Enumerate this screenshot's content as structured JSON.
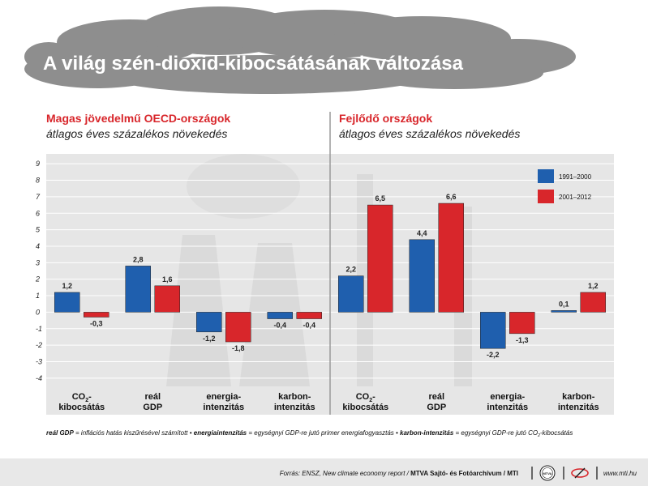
{
  "header": {
    "title": "A világ szén-dioxid-kibocsátásának változása"
  },
  "panels": [
    {
      "title": "Magas jövedelmű OECD-országok",
      "subtitle": "átlagos éves százalékos növekedés"
    },
    {
      "title": "Fejlődő országok",
      "subtitle": "átlagos éves százalékos növekedés"
    }
  ],
  "colors": {
    "series_1": "#1f5fae",
    "series_2": "#d8262b",
    "cloud": "#8e8e8e",
    "chart_bg": "#e6e6e6"
  },
  "chart_data": {
    "type": "bar",
    "ylim": [
      -4,
      9
    ],
    "yticks": [
      "9",
      "8",
      "7",
      "6",
      "5",
      "4",
      "3",
      "2",
      "1",
      "0",
      "-1",
      "-2",
      "-3",
      "-4"
    ],
    "grid": true,
    "legend_position": "top-right",
    "series_names": [
      "1991–2000",
      "2001–2012"
    ],
    "groups": [
      {
        "label_line1": "CO",
        "label_sub": "2",
        "label_dash": "-",
        "label_line2": "kibocsátás",
        "values": [
          1.2,
          -0.3
        ],
        "labels": [
          "1,2",
          "-0,3"
        ]
      },
      {
        "label_line1": "reál",
        "label_sub": "",
        "label_dash": "",
        "label_line2": "GDP",
        "values": [
          2.8,
          1.6
        ],
        "labels": [
          "2,8",
          "1,6"
        ]
      },
      {
        "label_line1": "energia-",
        "label_sub": "",
        "label_dash": "",
        "label_line2": "intenzitás",
        "values": [
          -1.2,
          -1.8
        ],
        "labels": [
          "-1,2",
          "-1,8"
        ]
      },
      {
        "label_line1": "karbon-",
        "label_sub": "",
        "label_dash": "",
        "label_line2": "intenzitás",
        "values": [
          -0.4,
          -0.4
        ],
        "labels": [
          "-0,4",
          "-0,4"
        ]
      },
      {
        "label_line1": "CO",
        "label_sub": "2",
        "label_dash": "-",
        "label_line2": "kibocsátás",
        "values": [
          2.2,
          6.5
        ],
        "labels": [
          "2,2",
          "6,5"
        ]
      },
      {
        "label_line1": "reál",
        "label_sub": "",
        "label_dash": "",
        "label_line2": "GDP",
        "values": [
          4.4,
          6.6
        ],
        "labels": [
          "4,4",
          "6,6"
        ]
      },
      {
        "label_line1": "energia-",
        "label_sub": "",
        "label_dash": "",
        "label_line2": "intenzitás",
        "values": [
          -2.2,
          -1.3
        ],
        "labels": [
          "-2,2",
          "-1,3"
        ]
      },
      {
        "label_line1": "karbon-",
        "label_sub": "",
        "label_dash": "",
        "label_line2": "intenzitás",
        "values": [
          0.1,
          1.2
        ],
        "labels": [
          "0,1",
          "1,2"
        ]
      }
    ]
  },
  "footnote": {
    "t1": "reál GDP",
    "t2": " = inflációs hatás kiszűrésével számított • ",
    "t3": "energiaintenzitás",
    "t4": " = egységnyi GDP-re jutó primer energiafogyasztás • ",
    "t5": "karbon-intenzitás",
    "t6": " = egységnyi GDP-re jutó CO",
    "t7": "2",
    "t8": "-kibocsátás"
  },
  "source": {
    "text": "Forrás: ENSZ, New climate economy report / ",
    "bold": "MTVA Sajtó- és Fotóarchívum / MTI",
    "logo": "MTVA",
    "url": "www.mti.hu"
  }
}
